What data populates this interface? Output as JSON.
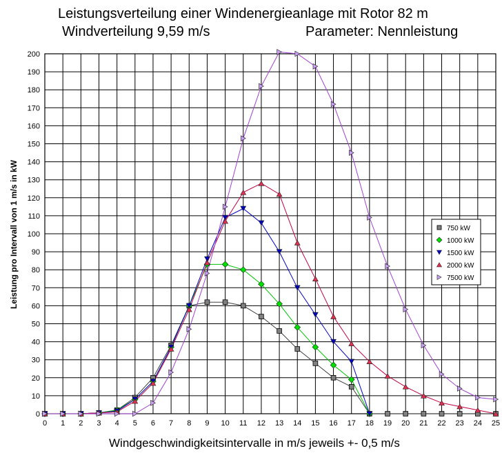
{
  "title_line1": "Leistungsverteilung  einer Windenergieanlage mit Rotor 82 m",
  "title_line2_left": "Windverteilung  9,59 m/s",
  "title_line2_right": "Parameter: Nennleistung",
  "chart_data": {
    "type": "line",
    "xlabel": "Windgeschwindigkeitsintervalle in  m/s  jeweils +- 0,5 m/s",
    "ylabel": "Leistung pro Intervall von 1 m/s    in kW",
    "xlim": [
      0,
      25
    ],
    "ylim": [
      0,
      200
    ],
    "x_ticks": [
      0,
      1,
      2,
      3,
      4,
      5,
      6,
      7,
      8,
      9,
      10,
      11,
      12,
      13,
      14,
      15,
      16,
      17,
      18,
      19,
      20,
      21,
      22,
      23,
      24,
      25
    ],
    "y_ticks": [
      0,
      10,
      20,
      30,
      40,
      50,
      60,
      70,
      80,
      90,
      100,
      110,
      120,
      130,
      140,
      150,
      160,
      170,
      180,
      190,
      200
    ],
    "grid": true,
    "legend_position": "right",
    "series": [
      {
        "name": "750 kW",
        "color": "#404040",
        "marker": "square",
        "x": [
          0,
          1,
          2,
          3,
          4,
          5,
          6,
          7,
          8,
          9,
          10,
          11,
          12,
          13,
          14,
          15,
          16,
          17,
          18,
          19,
          20,
          21,
          22,
          23,
          24,
          25
        ],
        "y": [
          0,
          0,
          0,
          0.5,
          2,
          9,
          20,
          38,
          60,
          62,
          62,
          60,
          54,
          46,
          36,
          28,
          20,
          15,
          0,
          0,
          0,
          0,
          0,
          0,
          0,
          0
        ]
      },
      {
        "name": "1000 kW",
        "color": "#00c000",
        "marker": "diamond",
        "x": [
          0,
          1,
          2,
          3,
          4,
          5,
          6,
          7,
          8,
          9,
          10,
          11,
          12,
          13,
          14,
          15,
          16,
          17,
          18
        ],
        "y": [
          0,
          0,
          0,
          0.5,
          2,
          8,
          18,
          37,
          60,
          83,
          83,
          80,
          72,
          61,
          48,
          37,
          27,
          19,
          0
        ]
      },
      {
        "name": "1500 kW",
        "color": "#0000c0",
        "marker": "triangle-down",
        "x": [
          0,
          1,
          2,
          3,
          4,
          5,
          6,
          7,
          8,
          9,
          10,
          11,
          12,
          13,
          14,
          15,
          16,
          17,
          18
        ],
        "y": [
          0,
          0,
          0,
          0.5,
          1.5,
          8,
          18,
          37,
          60,
          86,
          109,
          114,
          106,
          90,
          70,
          55,
          40,
          29,
          0
        ]
      },
      {
        "name": "2000 kW",
        "color": "#c00040",
        "marker": "triangle-up",
        "x": [
          0,
          1,
          2,
          3,
          4,
          5,
          6,
          7,
          8,
          9,
          10,
          11,
          12,
          13,
          14,
          15,
          16,
          17,
          18,
          19,
          20,
          21,
          22,
          23,
          24,
          25
        ],
        "y": [
          0,
          0,
          0,
          0.5,
          1,
          7,
          17,
          36,
          58,
          84,
          107,
          123,
          128,
          122,
          95,
          75,
          54,
          39,
          29,
          21,
          15,
          10,
          6,
          4,
          2,
          0
        ]
      },
      {
        "name": "7500 kW",
        "color": "#a040d0",
        "marker": "triangle-right",
        "x": [
          0,
          1,
          2,
          3,
          4,
          5,
          6,
          7,
          8,
          9,
          10,
          11,
          12,
          13,
          14,
          15,
          16,
          17,
          18,
          19,
          20,
          21,
          22,
          23,
          24,
          25
        ],
        "y": [
          0,
          0,
          0,
          0,
          0,
          0,
          6,
          23,
          47,
          78,
          115,
          153,
          182,
          201,
          200,
          193,
          172,
          145,
          109,
          82,
          58,
          38,
          22,
          14,
          9,
          8
        ]
      }
    ]
  }
}
